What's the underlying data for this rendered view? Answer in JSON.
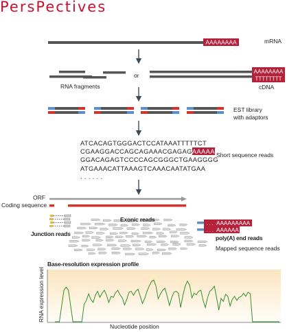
{
  "header": "PersPectives",
  "labels": {
    "mrna": "mRNA",
    "or": "or",
    "rna_fragments": "RNA fragments",
    "cdna": "cDNA",
    "est_library": "EST library",
    "with_adaptors": "with adaptors",
    "short_reads": "Short sequence reads",
    "orf": "ORF",
    "coding_sequence": "Coding sequence",
    "exonic_reads": "Exonic reads",
    "junction_reads": "Junction reads",
    "polya_end_reads": "poly(A) end reads",
    "mapped_reads": "Mapped sequence reads",
    "profile_title": "Base-resolution expression profile",
    "y_axis": "RNA expression level",
    "x_axis": "Nucleotide position"
  },
  "polya_tags": {
    "mrna_tail": "AAAAAAAA",
    "cdna_top": "AAAAAAAA",
    "cdna_bottom": "TTTTTTTT",
    "read_tail": "AAAAA",
    "end_read_1": "AAAAAAAAA",
    "end_read_2": "AAAAAA",
    "end_read_prefix": ". . ."
  },
  "sequence_reads": {
    "line1": "ATCACAGTGGGACTCCATAAATTTTTCT",
    "line2_prefix": "CGAAGGACCAGCAGAAACGAGAG",
    "line3": "GGACAGAGTCCCCAGCGGGCTGAAGGGG",
    "line4": "ATGAAACATTAAAGTCAAACAATATGAA",
    "ellipsis": ". . . . . ."
  },
  "colors": {
    "header_red": "#c8102e",
    "polya_red": "#b5203a",
    "adaptor_blue": "#5b8fc9",
    "adaptor_red": "#d0342c",
    "trace_green": "#2f8f2f",
    "gradient_top": "#fbe4bf"
  },
  "chart_data": {
    "type": "area",
    "title": "Base-resolution expression profile",
    "xlabel": "Nucleotide position",
    "ylabel": "RNA expression level",
    "grid": false,
    "legend": "none",
    "note": "unitless profile, axes carry no tick labels",
    "x": [
      0,
      2,
      4,
      5,
      6,
      8,
      10,
      12,
      13,
      14,
      15,
      16,
      17,
      18,
      19,
      20,
      21,
      22,
      23,
      24,
      25,
      26,
      27,
      28,
      29,
      30,
      31,
      32,
      33,
      34,
      35,
      36,
      37,
      38,
      39,
      40,
      41,
      42,
      43,
      44,
      45,
      46,
      47,
      48,
      49,
      50,
      51,
      52,
      53,
      54,
      55,
      56,
      57,
      58,
      59,
      60,
      61,
      62,
      63,
      64,
      65,
      66,
      67,
      68,
      69,
      70,
      71,
      72,
      73,
      74,
      75,
      76,
      77,
      78,
      79,
      80,
      81,
      82,
      83,
      84,
      85,
      86,
      87,
      88,
      89,
      90,
      91,
      92,
      93,
      94,
      95,
      96,
      97,
      98,
      99,
      100
    ],
    "y": [
      0,
      0,
      0.62,
      0.68,
      0.62,
      0,
      0,
      0,
      0.34,
      0.42,
      0.55,
      0.44,
      0.38,
      0.52,
      0.6,
      0.48,
      0.56,
      0.62,
      0.52,
      0.38,
      0.5,
      0.48,
      0.57,
      0.62,
      0.53,
      0.47,
      0.33,
      0.44,
      0.58,
      0.6,
      0.52,
      0.6,
      0.64,
      0.5,
      0.36,
      0.46,
      0.6,
      0.7,
      0.79,
      0.82,
      0.7,
      0.45,
      0.55,
      0.62,
      0.66,
      0.5,
      0.32,
      0.47,
      0.58,
      0.6,
      0.56,
      0.28,
      0.52,
      0.7,
      0.8,
      0.72,
      0.47,
      0.56,
      0.53,
      0.6,
      0.62,
      0.42,
      0.28,
      0.48,
      0.6,
      0.64,
      0.7,
      0.48,
      0.23,
      0.46,
      0.4,
      0.54,
      0.5,
      0.31,
      0.44,
      0.5,
      0.42,
      0.48,
      0.5,
      0.56,
      0.5,
      0.58,
      0.55,
      0,
      0,
      0,
      0,
      0,
      0,
      0,
      0,
      0,
      0,
      0,
      0,
      0
    ]
  }
}
